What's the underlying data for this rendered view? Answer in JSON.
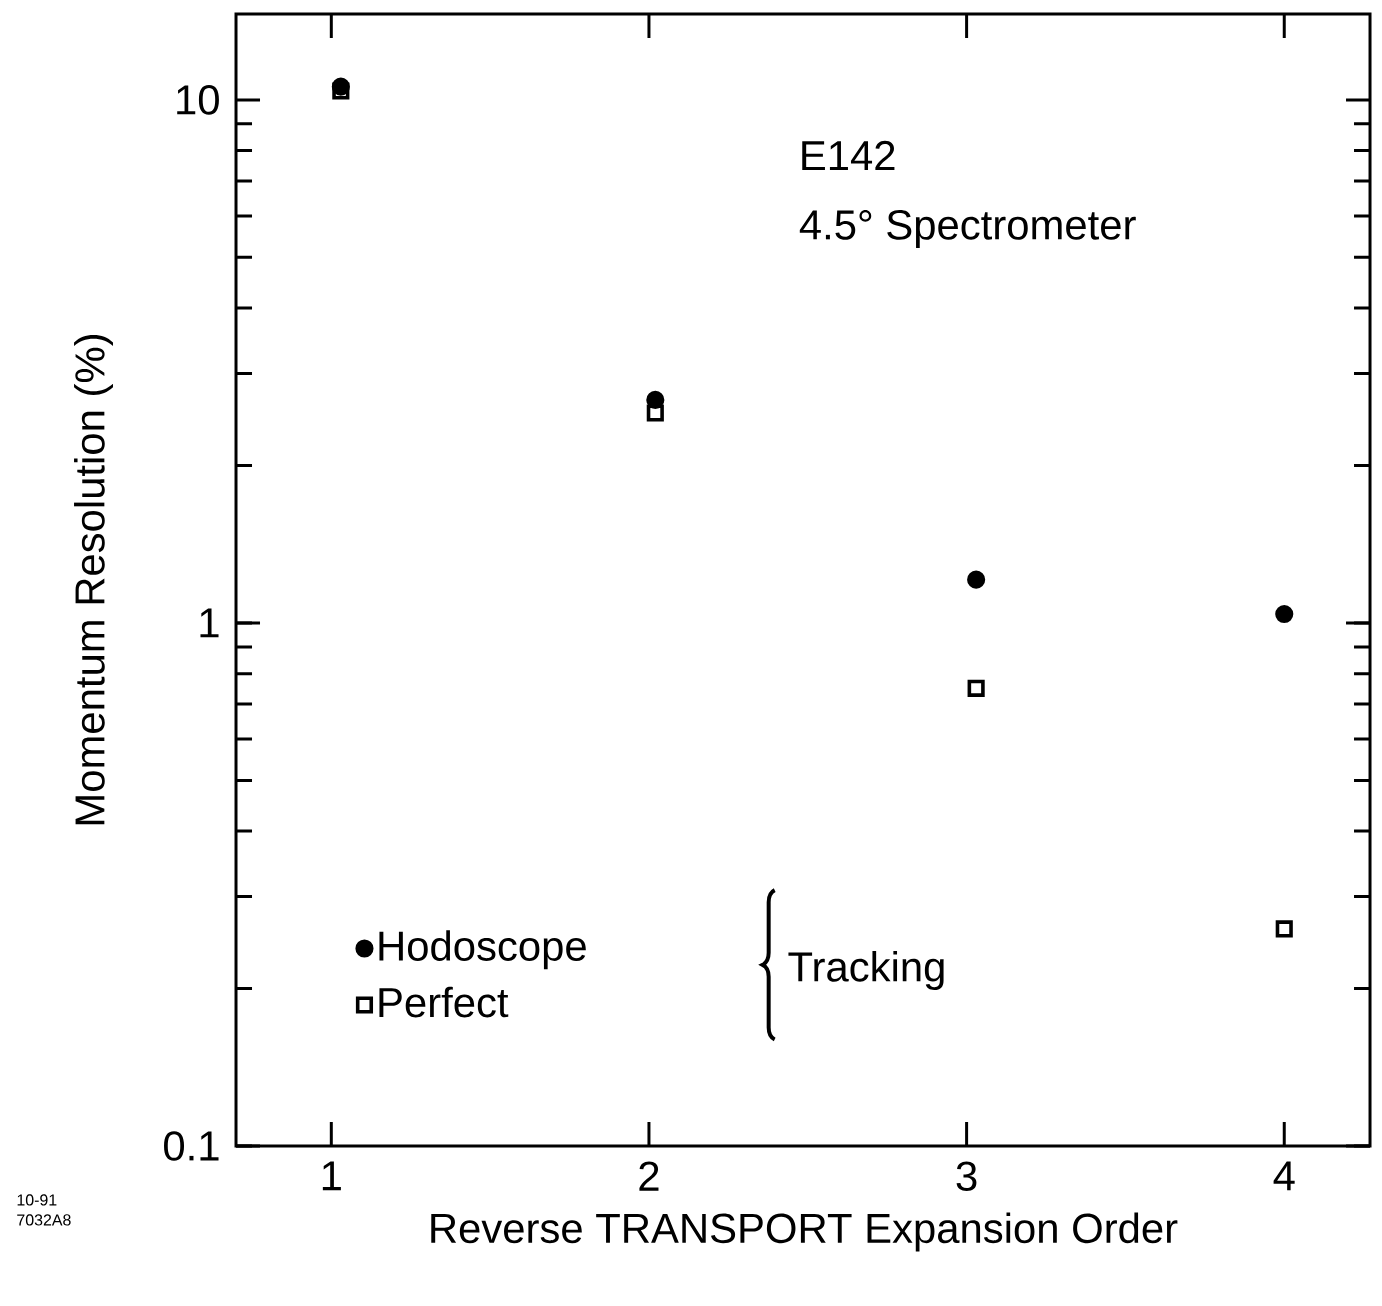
{
  "chart_data": {
    "type": "scatter",
    "xlabel": "Reverse TRANSPORT Expansion Order",
    "ylabel": "Momentum Resolution (%)",
    "log": "y",
    "xlim": [
      0.7,
      4.27
    ],
    "xticks": [
      1,
      2,
      3,
      4
    ],
    "ylim": [
      0.1,
      14.6
    ],
    "yticks": [
      0.1,
      1,
      10
    ],
    "legend": "bottom left",
    "grid": false,
    "series": [
      {
        "name": "Hodoscope",
        "color": "#000000",
        "marker": "circle",
        "x": [
          1.03,
          2.02,
          3.03,
          4.0
        ],
        "values": [
          10.6,
          2.67,
          1.21,
          1.04
        ]
      },
      {
        "name": "Perfect",
        "color": "#000000",
        "marker": "square",
        "x": [
          1.03,
          2.02,
          3.03,
          4.0
        ],
        "values": [
          10.4,
          2.52,
          0.75,
          0.26
        ]
      }
    ],
    "annotations": [
      "E142",
      "4.5° Spectrometer",
      "Tracking",
      "10-91",
      "7032A8"
    ]
  }
}
